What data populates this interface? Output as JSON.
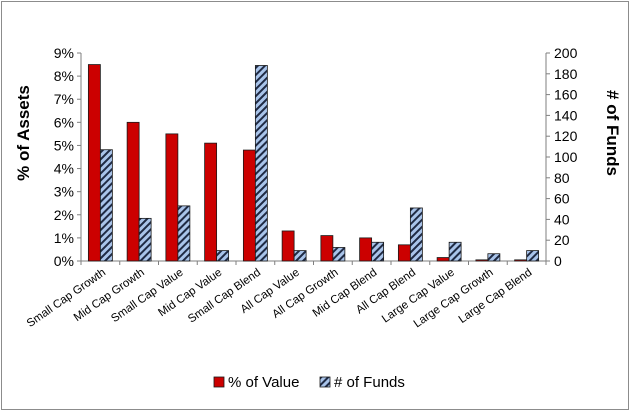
{
  "colors": {
    "value_fill": "#cc0000",
    "value_stroke": "#1a1a1a",
    "funds_fill": "#a9c4ea",
    "funds_stripe": "#1f2a44"
  },
  "chart_data": {
    "type": "bar",
    "title": "",
    "categories": [
      "Small Cap Growth",
      "Mid Cap Growth",
      "Small Cap Value",
      "Mid Cap Value",
      "Small Cap Blend",
      "All Cap Value",
      "All Cap Growth",
      "Mid Cap Blend",
      "All Cap Blend",
      "Large Cap Value",
      "Large Cap Growth",
      "Large Cap Blend"
    ],
    "series": [
      {
        "name": "% of Value",
        "axis": "left",
        "values": [
          8.5,
          6.0,
          5.5,
          5.1,
          4.8,
          1.3,
          1.1,
          1.0,
          0.7,
          0.15,
          0.05,
          0.05
        ]
      },
      {
        "name": "# of Funds",
        "axis": "right",
        "values": [
          107,
          41,
          53,
          10,
          188,
          10,
          13,
          18,
          51,
          18,
          7,
          10
        ]
      }
    ],
    "ylabel": "% of Assets",
    "y2label": "# of Funds",
    "ylim": [
      0,
      9
    ],
    "y2lim": [
      0,
      200
    ],
    "yticks": [
      "0%",
      "1%",
      "2%",
      "3%",
      "4%",
      "5%",
      "6%",
      "7%",
      "8%",
      "9%"
    ],
    "y2ticks": [
      "0",
      "20",
      "40",
      "60",
      "80",
      "100",
      "120",
      "140",
      "160",
      "180",
      "200"
    ],
    "legend": "bottom",
    "grid": false
  }
}
